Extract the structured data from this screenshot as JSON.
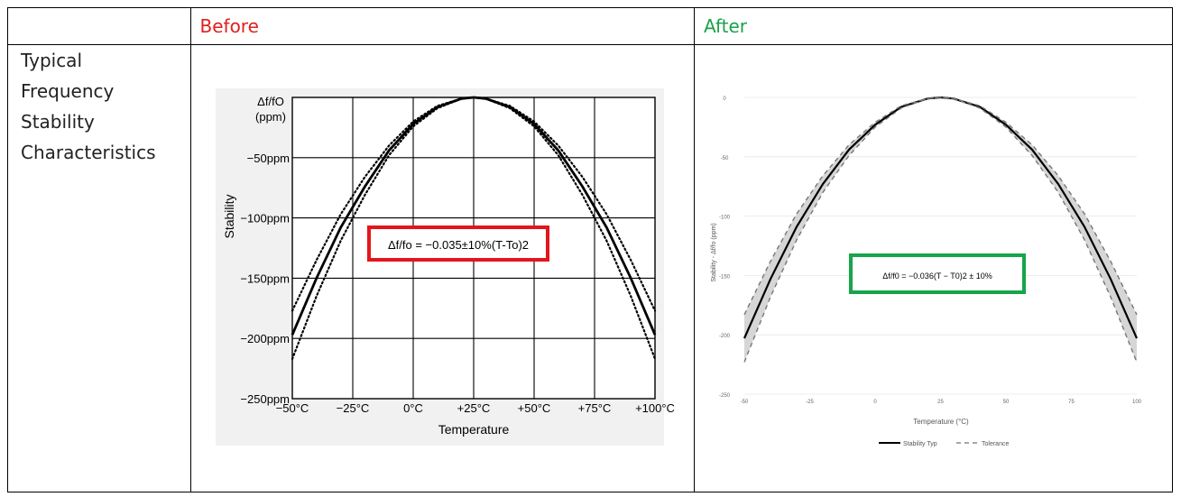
{
  "table": {
    "header_before": "Before",
    "header_after": "After",
    "row_label_lines": [
      "Typical",
      "Frequency",
      "Stability",
      "Characteristics"
    ]
  },
  "colors": {
    "before_header": "#e0201b",
    "after_header": "#1aa24a",
    "before_box": "#e3161b",
    "after_box": "#17a54a",
    "band_fill": "#d6d6d6"
  },
  "chart_data": [
    {
      "type": "line",
      "panel": "before",
      "ylabel_top": "Δf/fO",
      "ylabel_top_unit": "(ppm)",
      "ylabel": "Stability",
      "xlabel": "Temperature",
      "x_ticks": [
        "−50°C",
        "−25°C",
        "0°C",
        "+25°C",
        "+50°C",
        "+75°C",
        "+100°C"
      ],
      "y_ticks": [
        "−50ppm",
        "−100ppm",
        "−150ppm",
        "−200ppm",
        "−250ppm"
      ],
      "xlim": [
        -50,
        100
      ],
      "ylim": [
        -250,
        0
      ],
      "grid": true,
      "formula": "Δf/fo = −0.035±10%(T-To)2",
      "series": [
        {
          "style": "solid",
          "x": [
            -50,
            -40,
            -30,
            -20,
            -10,
            0,
            10,
            20,
            25,
            30,
            40,
            50,
            60,
            70,
            80,
            90,
            100
          ],
          "values": [
            -197,
            -150,
            -108,
            -74,
            -44,
            -22,
            -8,
            -1,
            0,
            -1,
            -8,
            -22,
            -44,
            -74,
            -108,
            -150,
            -197
          ]
        },
        {
          "style": "dotted",
          "x": [
            -50,
            -40,
            -30,
            -20,
            -10,
            0,
            10,
            20,
            25,
            30,
            40,
            50,
            60,
            70,
            80,
            90,
            100
          ],
          "values": [
            -217,
            -165,
            -119,
            -81,
            -48,
            -24,
            -9,
            -1,
            0,
            -1,
            -9,
            -24,
            -48,
            -81,
            -119,
            -165,
            -217
          ]
        },
        {
          "style": "dotted",
          "x": [
            -50,
            -40,
            -30,
            -20,
            -10,
            0,
            10,
            20,
            25,
            30,
            40,
            50,
            60,
            70,
            80,
            90,
            100
          ],
          "values": [
            -177,
            -135,
            -97,
            -66,
            -40,
            -20,
            -7,
            -1,
            0,
            -1,
            -7,
            -20,
            -40,
            -66,
            -97,
            -135,
            -177
          ]
        }
      ]
    },
    {
      "type": "area",
      "panel": "after",
      "ylabel": "Stability - Δf/fo (ppm)",
      "xlabel": "Temperature (°C)",
      "x_ticks": [
        "-50",
        "-25",
        "0",
        "25",
        "50",
        "75",
        "100"
      ],
      "y_ticks": [
        "0",
        "-50",
        "-100",
        "-150",
        "-200",
        "-250"
      ],
      "xlim": [
        -50,
        100
      ],
      "ylim": [
        -250,
        0
      ],
      "grid": true,
      "legend_position": "bottom",
      "formula": "Δf/f0 = −0.036(T − T0)2 ± 10%",
      "series": [
        {
          "name": "Stability Typ",
          "style": "solid",
          "x": [
            -50,
            -40,
            -30,
            -20,
            -10,
            0,
            10,
            20,
            25,
            30,
            40,
            50,
            60,
            70,
            80,
            90,
            100
          ],
          "values": [
            -203,
            -153,
            -109,
            -73,
            -44,
            -23,
            -8,
            -1,
            0,
            -1,
            -8,
            -23,
            -44,
            -73,
            -109,
            -153,
            -203
          ]
        },
        {
          "name": "Tolerance",
          "style": "dashed",
          "x": [
            -50,
            -40,
            -30,
            -20,
            -10,
            0,
            10,
            20,
            25,
            30,
            40,
            50,
            60,
            70,
            80,
            90,
            100
          ],
          "values": [
            -223,
            -168,
            -120,
            -80,
            -49,
            -25,
            -9,
            -1,
            0,
            -1,
            -9,
            -25,
            -49,
            -80,
            -120,
            -168,
            -223
          ]
        },
        {
          "name": "",
          "style": "dashed",
          "x": [
            -50,
            -40,
            -30,
            -20,
            -10,
            0,
            10,
            20,
            25,
            30,
            40,
            50,
            60,
            70,
            80,
            90,
            100
          ],
          "values": [
            -183,
            -138,
            -98,
            -66,
            -40,
            -21,
            -7,
            -1,
            0,
            -1,
            -7,
            -21,
            -40,
            -66,
            -98,
            -138,
            -183
          ]
        }
      ]
    }
  ]
}
